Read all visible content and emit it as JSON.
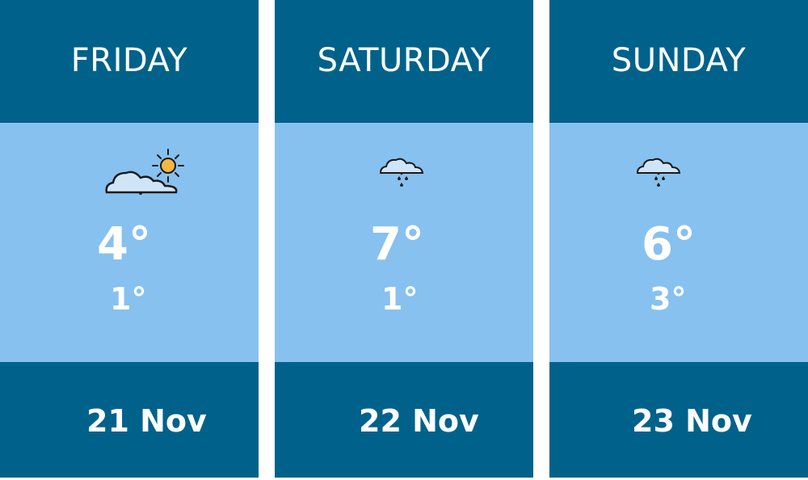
{
  "colors": {
    "header": "#00628a",
    "body": "#87c1ef",
    "text": "#ffffff"
  },
  "days": [
    {
      "name": "FRIDAY",
      "icon": "partly-cloudy-sun-icon",
      "high": "4°",
      "low": "1°",
      "date": "21 Nov"
    },
    {
      "name": "SATURDAY",
      "icon": "rain-cloud-icon",
      "high": "7°",
      "low": "1°",
      "date": "22 Nov"
    },
    {
      "name": "SUNDAY",
      "icon": "rain-cloud-icon",
      "high": "6°",
      "low": "3°",
      "date": "23 Nov"
    }
  ]
}
